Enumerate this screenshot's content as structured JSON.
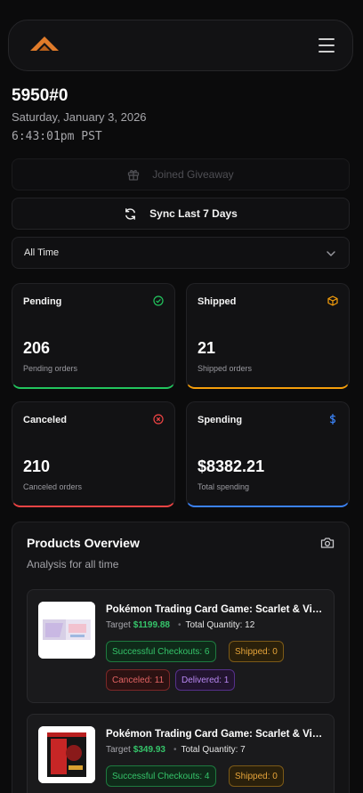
{
  "header": {
    "title": "5950#0",
    "date": "Saturday, January 3, 2026",
    "time": "6:43:01pm PST"
  },
  "actions": {
    "giveaway_label": "Joined Giveaway",
    "sync_label": "Sync Last 7 Days"
  },
  "filter": {
    "selected": "All Time"
  },
  "stats": {
    "pending": {
      "title": "Pending",
      "value": "206",
      "sub": "Pending orders"
    },
    "shipped": {
      "title": "Shipped",
      "value": "21",
      "sub": "Shipped orders"
    },
    "canceled": {
      "title": "Canceled",
      "value": "210",
      "sub": "Canceled orders"
    },
    "spending": {
      "title": "Spending",
      "value": "$8382.21",
      "sub": "Total spending"
    }
  },
  "overview": {
    "title": "Products Overview",
    "subtitle": "Analysis for all time",
    "products": [
      {
        "name": "Pokémon Trading Card Game: Scarlet & Violet",
        "target_label": "Target",
        "price": "$1199.88",
        "qty": "Total Quantity: 12",
        "checkouts": "Successful Checkouts: 6",
        "shipped": "Shipped: 0",
        "canceled": "Canceled: 11",
        "delivered": "Delivered: 1"
      },
      {
        "name": "Pokémon Trading Card Game: Scarlet & Violet",
        "target_label": "Target",
        "price": "$349.93",
        "qty": "Total Quantity: 7",
        "checkouts": "Successful Checkouts: 4",
        "shipped": "Shipped: 0"
      }
    ]
  },
  "colors": {
    "pending": "#22c55e",
    "shipped": "#f59e0b",
    "canceled": "#ef4444",
    "spending": "#3b82f6",
    "logo": "#e07b2a"
  },
  "icons": {
    "logo": "chevron-up-logo",
    "menu": "hamburger-menu-icon",
    "giveaway": "gift-icon",
    "sync": "refresh-icon",
    "chevron": "chevron-down-icon",
    "pending": "check-circle-icon",
    "shipped": "package-icon",
    "canceled": "x-circle-icon",
    "spending": "dollar-icon",
    "camera": "camera-icon"
  }
}
